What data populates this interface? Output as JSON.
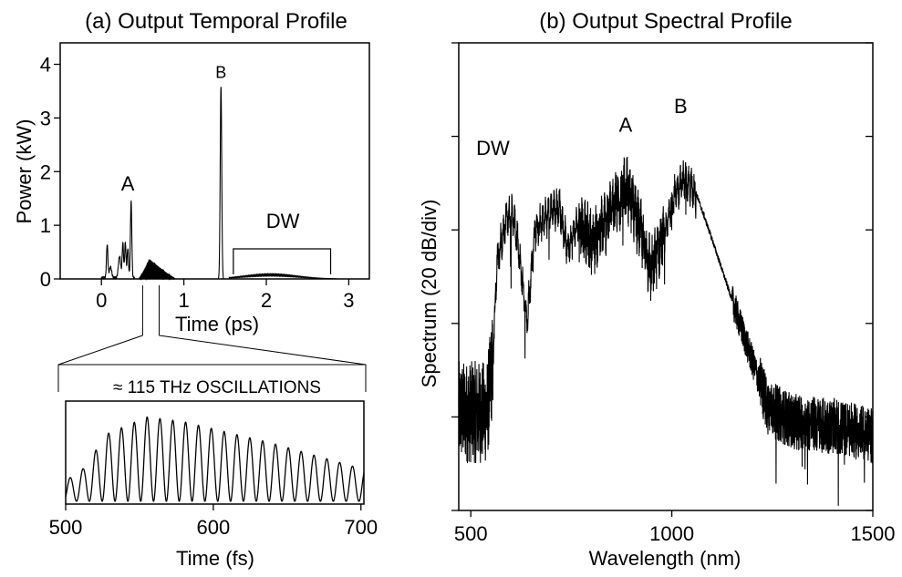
{
  "figure": {
    "panel_a_title": "(a) Output Temporal Profile",
    "panel_b_title": "(b) Output Spectral Profile",
    "inset_label": "≈ 115 THz OSCILLATIONS"
  },
  "chart_data": [
    {
      "id": "temporal",
      "type": "line",
      "title": "(a) Output Temporal Profile",
      "xlabel": "Time (ps)",
      "ylabel": "Power (kW)",
      "xlim": [
        -0.5,
        3.25
      ],
      "ylim": [
        0,
        4.4
      ],
      "xticks": [
        0,
        1,
        2,
        3
      ],
      "yticks": [
        0,
        1,
        2,
        3,
        4
      ],
      "annotations": [
        {
          "text": "A",
          "x": 0.32,
          "y": 1.65
        },
        {
          "text": "B",
          "x": 1.45,
          "y": 3.75
        },
        {
          "text": "DW",
          "x": 2.2,
          "y": 0.95
        }
      ],
      "dw_bracket": {
        "x_start": 1.6,
        "x_end": 2.78
      },
      "inset_source_range": [
        0.5,
        0.7
      ],
      "peaks": [
        {
          "center": 0.07,
          "height": 0.62,
          "width": 0.012
        },
        {
          "center": 0.11,
          "height": 0.2,
          "width": 0.02
        },
        {
          "center": 0.22,
          "height": 0.4,
          "width": 0.02
        },
        {
          "center": 0.26,
          "height": 0.64,
          "width": 0.012
        },
        {
          "center": 0.29,
          "height": 0.65,
          "width": 0.012
        },
        {
          "center": 0.32,
          "height": 0.55,
          "width": 0.012
        },
        {
          "center": 0.36,
          "height": 1.42,
          "width": 0.012
        },
        {
          "center": 1.45,
          "height": 3.58,
          "width": 0.013
        }
      ],
      "oscillating_envelope": {
        "start": 0.45,
        "peak": 0.58,
        "end": 0.9,
        "max": 0.37
      },
      "dw_hump": {
        "center": 2.05,
        "height": 0.1,
        "width": 0.45
      }
    },
    {
      "id": "oscillations",
      "type": "line",
      "xlabel": "Time (fs)",
      "ylabel": "",
      "xlim": [
        500,
        702
      ],
      "ylim": [
        0,
        1.1
      ],
      "xticks": [
        500,
        600,
        700
      ],
      "frequency_thz": 115,
      "envelope": [
        {
          "x": 500,
          "y": 0.22
        },
        {
          "x": 512,
          "y": 0.35
        },
        {
          "x": 528,
          "y": 0.72
        },
        {
          "x": 555,
          "y": 0.9
        },
        {
          "x": 580,
          "y": 0.85
        },
        {
          "x": 640,
          "y": 0.62
        },
        {
          "x": 700,
          "y": 0.35
        }
      ]
    },
    {
      "id": "spectral",
      "type": "line",
      "title": "(b) Output Spectral Profile",
      "xlabel": "Wavelength (nm)",
      "ylabel": "Spectrum (20 dB/div)",
      "xlim": [
        470,
        1500
      ],
      "ylim": [
        -5,
        0
      ],
      "xticks": [
        500,
        1000,
        1500
      ],
      "y_divisions": 5,
      "annotations": [
        {
          "text": "DW",
          "x": 555,
          "y": -1.2
        },
        {
          "text": "A",
          "x": 885,
          "y": -0.95
        },
        {
          "text": "B",
          "x": 1022,
          "y": -0.75
        }
      ],
      "profile": [
        {
          "x": 470,
          "y": -3.95
        },
        {
          "x": 540,
          "y": -3.95
        },
        {
          "x": 555,
          "y": -3.4
        },
        {
          "x": 565,
          "y": -2.35
        },
        {
          "x": 590,
          "y": -1.85
        },
        {
          "x": 605,
          "y": -1.85
        },
        {
          "x": 615,
          "y": -2.1
        },
        {
          "x": 640,
          "y": -2.95
        },
        {
          "x": 660,
          "y": -2.0
        },
        {
          "x": 690,
          "y": -1.85
        },
        {
          "x": 720,
          "y": -1.75
        },
        {
          "x": 740,
          "y": -2.2
        },
        {
          "x": 770,
          "y": -1.9
        },
        {
          "x": 800,
          "y": -2.15
        },
        {
          "x": 830,
          "y": -1.95
        },
        {
          "x": 860,
          "y": -1.7
        },
        {
          "x": 890,
          "y": -1.55
        },
        {
          "x": 920,
          "y": -2.0
        },
        {
          "x": 950,
          "y": -2.45
        },
        {
          "x": 965,
          "y": -2.2
        },
        {
          "x": 985,
          "y": -2.0
        },
        {
          "x": 1000,
          "y": -1.7
        },
        {
          "x": 1030,
          "y": -1.45
        },
        {
          "x": 1060,
          "y": -1.6
        },
        {
          "x": 1100,
          "y": -2.1
        },
        {
          "x": 1150,
          "y": -2.75
        },
        {
          "x": 1200,
          "y": -3.4
        },
        {
          "x": 1240,
          "y": -3.9
        },
        {
          "x": 1300,
          "y": -4.05
        },
        {
          "x": 1400,
          "y": -4.1
        },
        {
          "x": 1500,
          "y": -4.2
        }
      ]
    }
  ]
}
